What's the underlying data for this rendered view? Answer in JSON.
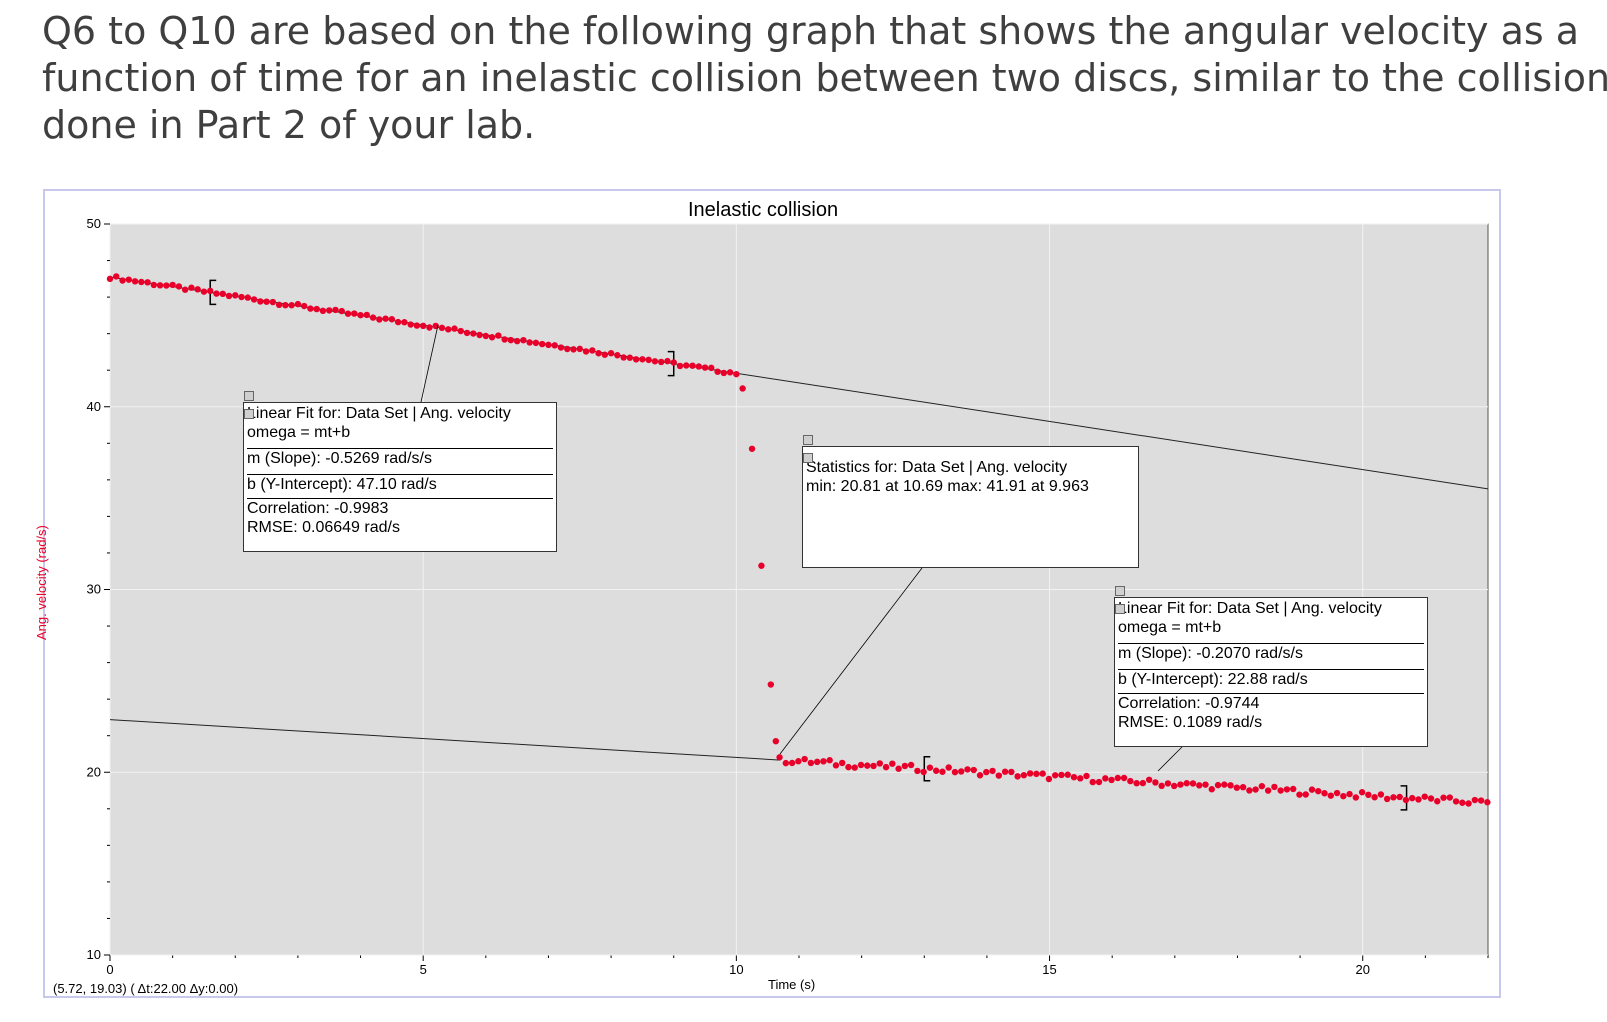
{
  "question": {
    "lines": [
      "Q6 to Q10 are based on the following graph that shows the angular velocity as a",
      "function of time for an inelastic collision between two discs, similar to the collision",
      "done in Part 2 of your lab."
    ]
  },
  "chart_data": {
    "type": "scatter",
    "title": "Inelastic collision",
    "xlabel": "Time (s)",
    "ylabel": "Ang. velocity (rad/s)",
    "xlim": [
      0,
      22
    ],
    "ylim": [
      10,
      50
    ],
    "xticks": [
      0,
      5,
      10,
      15,
      20
    ],
    "yticks": [
      10,
      20,
      30,
      40,
      50
    ],
    "grid": true,
    "colors": {
      "points": "#e8002a",
      "plot_bg": "#dddddd",
      "fit_line": "#222222"
    },
    "series": [
      {
        "segments": [
          {
            "x_range": [
              0,
              10.0
            ],
            "fit": {
              "m": -0.5269,
              "b": 47.1
            }
          },
          {
            "x": [
              10.1,
              10.25,
              10.4,
              10.55,
              10.63
            ],
            "y": [
              41.0,
              37.7,
              31.3,
              24.8,
              21.7
            ]
          },
          {
            "x_range": [
              10.69,
              22.0
            ],
            "fit": {
              "m": -0.207,
              "b": 22.88
            }
          }
        ]
      }
    ],
    "fits": [
      {
        "m": -0.5269,
        "b": 47.1,
        "x_range": [
          0,
          22
        ],
        "region": [
          1.6,
          9.0
        ]
      },
      {
        "m": -0.207,
        "b": 22.88,
        "x_range": [
          0,
          10.7
        ],
        "region": [
          13.0,
          20.7
        ]
      }
    ],
    "annotations": {
      "fit1": {
        "lines": [
          "Linear Fit for: Data Set | Ang. velocity",
          "omega = mt+b",
          "m (Slope): -0.5269 rad/s/s",
          "b (Y-Intercept): 47.10 rad/s",
          "Correlation: -0.9983",
          "RMSE: 0.06649 rad/s"
        ]
      },
      "stats": {
        "lines": [
          "Statistics for: Data Set | Ang. velocity",
          "min: 20.81 at 10.69 max: 41.91 at 9.963"
        ]
      },
      "fit2": {
        "lines": [
          "Linear Fit for: Data Set | Ang. velocity",
          "omega = mt+b",
          "m (Slope): -0.2070 rad/s/s",
          "b (Y-Intercept): 22.88 rad/s",
          "Correlation: -0.9744",
          "RMSE: 0.1089 rad/s"
        ]
      }
    },
    "status": "(5.72, 19.03) ( Δt:22.00  Δy:0.00)"
  }
}
